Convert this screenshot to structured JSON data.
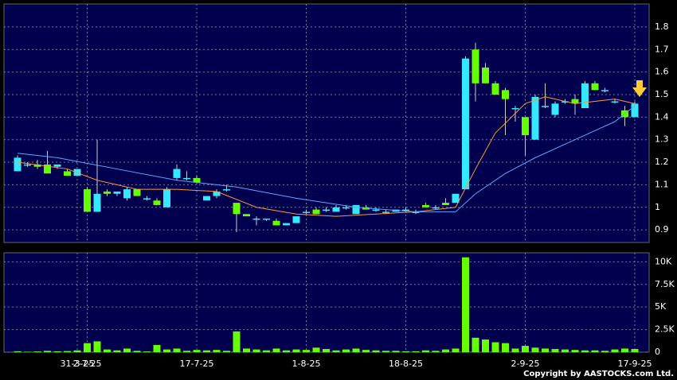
{
  "chart_data": {
    "type": "candlestick",
    "up_color": "#33e8ff",
    "down_color": "#66ff00",
    "volume_color": "#66ff00",
    "open": [
      1.16,
      1.19,
      1.19,
      1.19,
      1.18,
      1.16,
      1.14,
      1.08,
      0.98,
      1.07,
      1.06,
      1.04,
      1.08,
      1.04,
      1.03,
      1.0,
      1.13,
      1.13,
      1.13,
      1.03,
      1.05,
      1.08,
      1.02,
      0.97,
      0.95,
      0.95,
      0.94,
      0.92,
      0.93,
      0.98,
      0.99,
      0.99,
      0.98,
      1.0,
      0.97,
      1.0,
      0.99,
      0.98,
      0.98,
      0.99,
      0.98,
      1.01,
      1.0,
      1.02,
      1.02,
      1.08,
      1.7,
      1.62,
      1.55,
      1.52,
      1.44,
      1.4,
      1.3,
      1.45,
      1.41,
      1.47,
      1.48,
      1.44,
      1.55,
      1.52,
      1.47,
      1.43,
      1.4
    ],
    "high": [
      1.23,
      1.2,
      1.21,
      1.25,
      1.19,
      1.17,
      1.17,
      1.09,
      1.3,
      1.08,
      1.07,
      1.09,
      1.08,
      1.05,
      1.04,
      1.09,
      1.19,
      1.16,
      1.14,
      1.05,
      1.08,
      1.1,
      1.02,
      0.97,
      0.96,
      0.95,
      0.95,
      0.93,
      0.96,
      0.99,
      1.0,
      1.0,
      1.01,
      1.01,
      1.01,
      1.01,
      1.0,
      0.99,
      0.99,
      1.0,
      0.99,
      1.02,
      1.01,
      1.04,
      1.06,
      1.67,
      1.73,
      1.64,
      1.56,
      1.53,
      1.45,
      1.4,
      1.5,
      1.55,
      1.47,
      1.48,
      1.5,
      1.56,
      1.56,
      1.53,
      1.48,
      1.45,
      1.47
    ],
    "low": [
      1.16,
      1.18,
      1.17,
      1.15,
      1.17,
      1.14,
      1.14,
      0.98,
      0.98,
      1.05,
      1.05,
      1.03,
      1.05,
      1.03,
      1.01,
      1.0,
      1.12,
      1.12,
      1.11,
      1.03,
      1.04,
      1.07,
      0.89,
      0.96,
      0.92,
      0.94,
      0.92,
      0.92,
      0.93,
      0.97,
      0.97,
      0.98,
      0.98,
      0.99,
      0.97,
      0.99,
      0.98,
      0.97,
      0.98,
      0.98,
      0.97,
      1.0,
      0.99,
      1.01,
      1.02,
      1.08,
      1.47,
      1.55,
      1.5,
      1.32,
      1.38,
      1.23,
      1.3,
      1.44,
      1.4,
      1.46,
      1.41,
      1.44,
      1.52,
      1.51,
      1.46,
      1.36,
      1.4
    ],
    "close": [
      1.22,
      1.19,
      1.18,
      1.15,
      1.19,
      1.14,
      1.17,
      0.98,
      1.06,
      1.06,
      1.07,
      1.08,
      1.05,
      1.04,
      1.01,
      1.08,
      1.17,
      1.13,
      1.11,
      1.05,
      1.07,
      1.08,
      0.97,
      0.96,
      0.95,
      0.95,
      0.92,
      0.93,
      0.96,
      0.98,
      0.97,
      0.99,
      1.0,
      1.0,
      1.01,
      0.99,
      0.99,
      0.98,
      0.99,
      0.99,
      0.98,
      1.0,
      1.0,
      1.01,
      1.06,
      1.66,
      1.55,
      1.55,
      1.5,
      1.48,
      1.44,
      1.32,
      1.49,
      1.45,
      1.46,
      1.47,
      1.46,
      1.55,
      1.52,
      1.52,
      1.47,
      1.4,
      1.46
    ],
    "volume": [
      100,
      50,
      80,
      150,
      100,
      120,
      200,
      1000,
      1200,
      300,
      200,
      400,
      150,
      80,
      800,
      300,
      400,
      150,
      250,
      200,
      250,
      150,
      2300,
      400,
      300,
      200,
      400,
      200,
      300,
      250,
      500,
      350,
      200,
      300,
      400,
      250,
      200,
      150,
      150,
      100,
      100,
      200,
      150,
      300,
      400,
      10500,
      1600,
      1400,
      1100,
      1000,
      400,
      700,
      500,
      400,
      350,
      300,
      250,
      200,
      200,
      150,
      300,
      400,
      350
    ],
    "lines": [
      {
        "color": "#ff9933",
        "x": [
          0,
          5,
          8,
          12,
          16,
          20,
          24,
          28,
          32,
          36,
          40,
          44,
          46,
          48,
          51,
          53,
          56,
          60,
          62
        ],
        "values": [
          1.2,
          1.17,
          1.12,
          1.08,
          1.08,
          1.07,
          1.0,
          0.97,
          0.96,
          0.97,
          0.98,
          1.0,
          1.17,
          1.33,
          1.46,
          1.49,
          1.46,
          1.48,
          1.46
        ]
      },
      {
        "color": "#55aaff",
        "x": [
          0,
          4,
          10,
          16,
          22,
          28,
          34,
          40,
          44,
          46,
          49,
          52,
          56,
          60,
          62
        ],
        "values": [
          1.24,
          1.22,
          1.17,
          1.12,
          1.09,
          1.04,
          1.0,
          0.98,
          0.98,
          1.06,
          1.15,
          1.22,
          1.3,
          1.38,
          1.45
        ]
      }
    ],
    "xticks": [
      {
        "value": 6,
        "label": "31-3-25"
      },
      {
        "value": 7,
        "label": "2-7-25"
      },
      {
        "value": 18,
        "label": "17-7-25"
      },
      {
        "value": 29,
        "label": "1-8-25"
      },
      {
        "value": 39,
        "label": "18-8-25"
      },
      {
        "value": 51,
        "label": "2-9-25"
      },
      {
        "value": 62,
        "label": "17-9-25"
      }
    ],
    "ylim": [
      0.844,
      1.902
    ],
    "yticks": [
      0.9,
      1,
      1.1,
      1.2,
      1.3,
      1.4,
      1.5,
      1.6,
      1.7,
      1.8
    ],
    "y2lim": [
      0,
      11000
    ],
    "y2ticks": [
      0,
      {
        "value": 2500,
        "label": "2.5K"
      },
      {
        "value": 5000,
        "label": "5K"
      },
      {
        "value": 7500,
        "label": "7.5K"
      },
      {
        "value": 10000,
        "label": "10K"
      }
    ],
    "copyright": "Copyright by AASTOCKS.com Ltd."
  }
}
